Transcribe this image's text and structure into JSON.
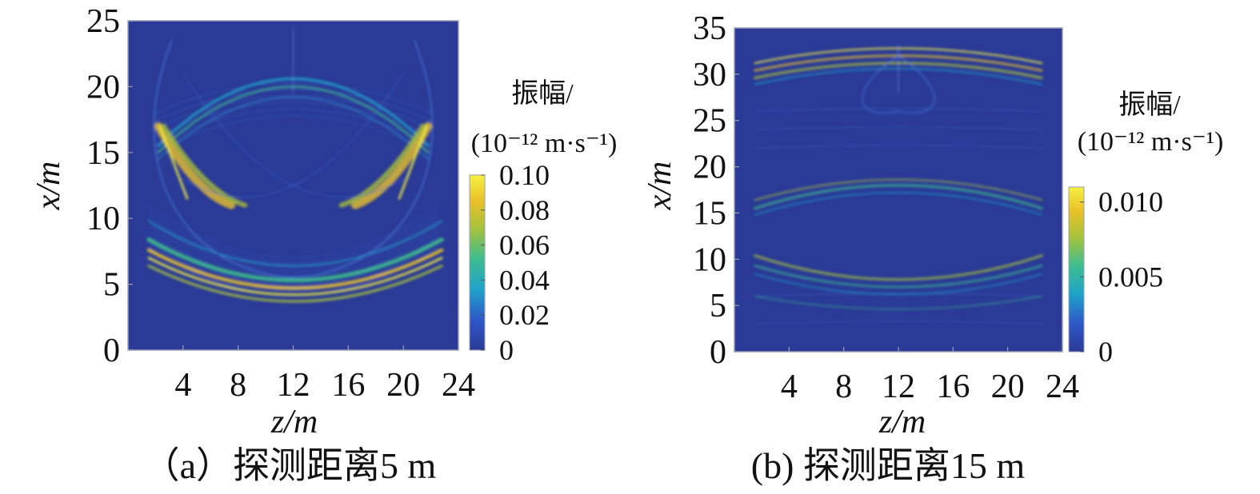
{
  "colors": {
    "field_background": "#2a3a96",
    "colormap": [
      "#2a3a96",
      "#2f57c8",
      "#1fa3c9",
      "#3dbd8f",
      "#a9c23a",
      "#e8c02a",
      "#f5f040"
    ]
  },
  "chart_data": [
    {
      "type": "heatmap",
      "panel": "a",
      "caption": "（a）探测距离5 m",
      "xlabel": "z/m",
      "ylabel": "x/m",
      "xticks": [
        "4",
        "8",
        "12",
        "16",
        "20",
        "24"
      ],
      "yticks": [
        "0",
        "5",
        "10",
        "15",
        "20",
        "25"
      ],
      "xlim": [
        0,
        24
      ],
      "ylim": [
        0,
        25
      ],
      "colorbar": {
        "title_line1": "振幅/",
        "title_line2": "(10⁻¹² m·s⁻¹)",
        "ticks": [
          "0",
          "0.02",
          "0.04",
          "0.06",
          "0.08",
          "0.10"
        ],
        "range": [
          0,
          0.1
        ]
      },
      "grid": false
    },
    {
      "type": "heatmap",
      "panel": "b",
      "caption": "(b) 探测距离15 m",
      "xlabel": "z/m",
      "ylabel": "x/m",
      "xticks": [
        "4",
        "8",
        "12",
        "16",
        "20",
        "24"
      ],
      "yticks": [
        "0",
        "5",
        "10",
        "15",
        "20",
        "25",
        "30",
        "35"
      ],
      "xlim": [
        0,
        24
      ],
      "ylim": [
        0,
        35
      ],
      "colorbar": {
        "title_line1": "振幅/",
        "title_line2": "(10⁻¹² m·s⁻¹)",
        "ticks": [
          "0",
          "0.005",
          "0.010"
        ],
        "range": [
          0,
          0.011
        ]
      },
      "grid": false
    }
  ]
}
